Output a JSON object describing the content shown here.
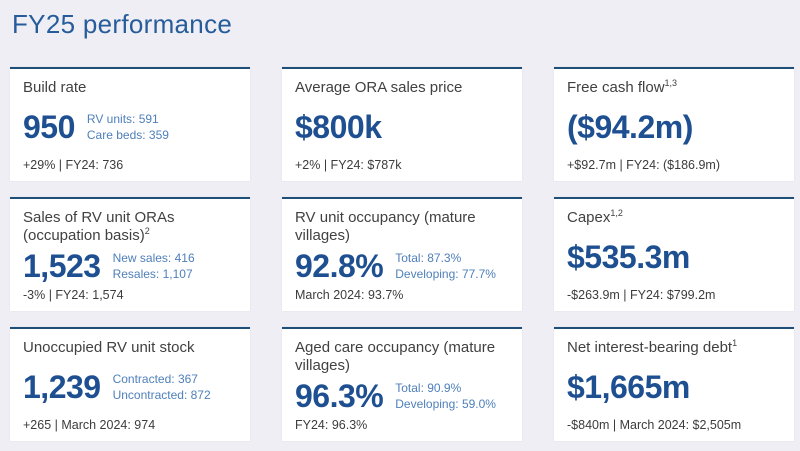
{
  "page_title": "FY25 performance",
  "colors": {
    "page_background": "#efeef4",
    "card_background": "#ffffff",
    "card_top_border": "#1f4e79",
    "title_blue": "#265c9a",
    "value_blue": "#1e4f91",
    "detail_blue": "#4f80ba",
    "body_text": "#3c3c3c"
  },
  "cards": [
    {
      "title": "Build rate",
      "sup": "",
      "value": "950",
      "details": [
        "RV units: 591",
        "Care beds: 359"
      ],
      "footer": "+29%  |  FY24: 736"
    },
    {
      "title": "Average ORA sales price",
      "sup": "",
      "value": "$800k",
      "details": [],
      "footer": "+2%  |  FY24: $787k"
    },
    {
      "title": "Free cash flow",
      "sup": "1,3",
      "value": "($94.2m)",
      "details": [],
      "footer": "+$92.7m  |  FY24: ($186.9m)"
    },
    {
      "title": "Sales of RV unit ORAs (occupation basis)",
      "sup": "2",
      "value": "1,523",
      "details": [
        "New sales: 416",
        "Resales: 1,107"
      ],
      "footer": "-3%  |  FY24: 1,574"
    },
    {
      "title": "RV unit occupancy (mature villages)",
      "sup": "",
      "value": "92.8%",
      "details": [
        "Total: 87.3%",
        "Developing: 77.7%"
      ],
      "footer": "March 2024: 93.7%"
    },
    {
      "title": "Capex",
      "sup": "1,2",
      "value": "$535.3m",
      "details": [],
      "footer": "-$263.9m  |  FY24: $799.2m"
    },
    {
      "title": "Unoccupied RV unit stock",
      "sup": "",
      "value": "1,239",
      "details": [
        "Contracted: 367",
        "Uncontracted: 872"
      ],
      "footer": "+265  |  March 2024: 974"
    },
    {
      "title": "Aged care occupancy (mature villages)",
      "sup": "",
      "value": "96.3%",
      "details": [
        "Total: 90.9%",
        "Developing: 59.0%"
      ],
      "footer": "FY24: 96.3%"
    },
    {
      "title": "Net interest-bearing debt",
      "sup": "1",
      "value": "$1,665m",
      "details": [],
      "footer": "-$840m  |  March 2024: $2,505m"
    }
  ]
}
